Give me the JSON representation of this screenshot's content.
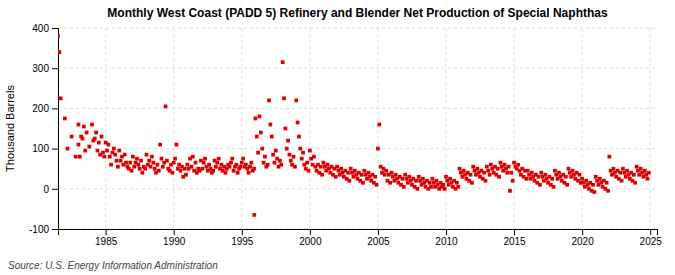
{
  "chart_data": {
    "type": "scatter",
    "title": "Monthly West Coast (PADD 5) Refinery and Blender Net Production of Special Naphthas",
    "ylabel": "Thousand Barrels",
    "annotations": [
      "Source: U.S. Energy Information Administration"
    ],
    "color": "#dd0000",
    "marker": "square",
    "grid": true,
    "xlim": [
      1981.5,
      2025.5
    ],
    "ylim": [
      -100,
      400
    ],
    "xticks": [
      1985,
      1990,
      1995,
      2000,
      2005,
      2010,
      2015,
      2020,
      2025
    ],
    "yticks": [
      -100,
      0,
      100,
      200,
      300,
      400
    ],
    "x": [
      1981.5,
      1981.6,
      1981.7,
      1982.0,
      1982.2,
      1982.5,
      1982.8,
      1983.0,
      1983.2,
      1983.4,
      1983.6,
      1983.8,
      1984.0,
      1984.2,
      1984.3,
      1984.5,
      1984.7,
      1984.9,
      1983.0,
      1983.1,
      1983.3,
      1983.5,
      1984.1,
      1984.4,
      1984.6,
      1984.8,
      1985.0,
      1985.1,
      1985.2,
      1985.3,
      1985.4,
      1985.5,
      1985.6,
      1985.7,
      1985.8,
      1985.9,
      1986.0,
      1986.1,
      1986.2,
      1986.3,
      1986.4,
      1986.5,
      1986.6,
      1986.7,
      1986.8,
      1986.9,
      1987.0,
      1987.1,
      1987.2,
      1987.3,
      1987.4,
      1987.5,
      1987.6,
      1987.7,
      1987.8,
      1987.9,
      1988.0,
      1988.1,
      1988.2,
      1988.3,
      1988.4,
      1988.5,
      1988.6,
      1988.7,
      1988.8,
      1988.9,
      1989.0,
      1989.1,
      1989.2,
      1989.3,
      1989.4,
      1989.5,
      1989.6,
      1989.7,
      1989.8,
      1989.9,
      1990.0,
      1990.1,
      1990.2,
      1990.3,
      1990.4,
      1990.5,
      1990.6,
      1990.7,
      1990.8,
      1990.9,
      1991.0,
      1991.1,
      1991.2,
      1991.3,
      1991.4,
      1991.5,
      1991.6,
      1991.7,
      1991.8,
      1991.9,
      1992.0,
      1992.1,
      1992.2,
      1992.3,
      1992.4,
      1992.5,
      1992.6,
      1992.7,
      1992.8,
      1992.9,
      1993.0,
      1993.1,
      1993.2,
      1993.3,
      1993.4,
      1993.5,
      1993.6,
      1993.7,
      1993.8,
      1993.9,
      1994.0,
      1994.1,
      1994.2,
      1994.3,
      1994.4,
      1994.5,
      1994.6,
      1994.7,
      1994.8,
      1994.9,
      1995.0,
      1995.1,
      1995.2,
      1995.3,
      1995.4,
      1995.5,
      1995.6,
      1995.7,
      1995.8,
      1995.9,
      1995.92,
      1996.0,
      1996.1,
      1996.2,
      1996.3,
      1996.4,
      1996.5,
      1996.6,
      1996.7,
      1996.8,
      1996.9,
      1997.0,
      1997.1,
      1997.2,
      1997.3,
      1997.4,
      1997.5,
      1997.6,
      1997.7,
      1997.8,
      1997.9,
      1998.0,
      1998.1,
      1998.2,
      1998.3,
      1998.4,
      1998.5,
      1998.6,
      1998.7,
      1998.8,
      1998.9,
      1999.0,
      1999.1,
      1999.2,
      1999.3,
      1999.4,
      1999.5,
      1999.6,
      1999.7,
      1999.8,
      1999.9,
      2000.0,
      2000.1,
      2000.2,
      2000.3,
      2000.4,
      2000.5,
      2000.6,
      2000.7,
      2000.8,
      2000.9,
      2001.0,
      2001.1,
      2001.2,
      2001.3,
      2001.4,
      2001.5,
      2001.6,
      2001.7,
      2001.8,
      2001.9,
      2002.0,
      2002.1,
      2002.2,
      2002.3,
      2002.4,
      2002.5,
      2002.6,
      2002.7,
      2002.8,
      2002.9,
      2003.0,
      2003.1,
      2003.2,
      2003.3,
      2003.4,
      2003.5,
      2003.6,
      2003.7,
      2003.8,
      2003.9,
      2004.0,
      2004.1,
      2004.2,
      2004.3,
      2004.4,
      2004.5,
      2004.6,
      2004.7,
      2004.8,
      2004.9,
      2005.0,
      2005.1,
      2005.2,
      2005.3,
      2005.4,
      2005.5,
      2005.6,
      2005.7,
      2005.8,
      2005.9,
      2006.0,
      2006.1,
      2006.2,
      2006.3,
      2006.4,
      2006.5,
      2006.6,
      2006.7,
      2006.8,
      2006.9,
      2007.0,
      2007.1,
      2007.2,
      2007.3,
      2007.4,
      2007.5,
      2007.6,
      2007.7,
      2007.8,
      2007.9,
      2008.0,
      2008.1,
      2008.2,
      2008.3,
      2008.4,
      2008.5,
      2008.6,
      2008.7,
      2008.8,
      2008.9,
      2009.0,
      2009.1,
      2009.2,
      2009.3,
      2009.4,
      2009.5,
      2009.6,
      2009.7,
      2009.8,
      2009.9,
      2010.0,
      2010.1,
      2010.2,
      2010.3,
      2010.4,
      2010.5,
      2010.6,
      2010.7,
      2010.8,
      2010.9,
      2011.0,
      2011.1,
      2011.2,
      2011.3,
      2011.4,
      2011.5,
      2011.6,
      2011.7,
      2011.8,
      2011.9,
      2012.0,
      2012.1,
      2012.2,
      2012.3,
      2012.4,
      2012.5,
      2012.6,
      2012.7,
      2012.8,
      2012.9,
      2013.0,
      2013.1,
      2013.2,
      2013.3,
      2013.4,
      2013.5,
      2013.6,
      2013.7,
      2013.8,
      2013.9,
      2014.0,
      2014.1,
      2014.2,
      2014.3,
      2014.4,
      2014.5,
      2014.6,
      2014.7,
      2014.8,
      2014.9,
      2015.0,
      2015.1,
      2015.2,
      2015.3,
      2015.4,
      2015.5,
      2015.6,
      2015.7,
      2015.8,
      2015.9,
      2016.0,
      2016.1,
      2016.2,
      2016.3,
      2016.4,
      2016.5,
      2016.6,
      2016.7,
      2016.8,
      2016.9,
      2017.0,
      2017.1,
      2017.2,
      2017.3,
      2017.4,
      2017.5,
      2017.6,
      2017.7,
      2017.8,
      2017.9,
      2018.0,
      2018.1,
      2018.2,
      2018.3,
      2018.4,
      2018.5,
      2018.6,
      2018.7,
      2018.8,
      2018.9,
      2019.0,
      2019.1,
      2019.2,
      2019.3,
      2019.4,
      2019.5,
      2019.6,
      2019.7,
      2019.8,
      2019.9,
      2020.0,
      2020.1,
      2020.2,
      2020.3,
      2020.4,
      2020.5,
      2020.6,
      2020.7,
      2020.8,
      2020.9,
      2021.0,
      2021.1,
      2021.2,
      2021.3,
      2021.4,
      2021.5,
      2021.6,
      2021.7,
      2021.8,
      2021.9,
      2022.0,
      2022.1,
      2022.2,
      2022.3,
      2022.4,
      2022.5,
      2022.6,
      2022.7,
      2022.8,
      2022.9,
      2023.0,
      2023.1,
      2023.2,
      2023.3,
      2023.4,
      2023.5,
      2023.6,
      2023.7,
      2023.8,
      2023.9,
      2024.0,
      2024.1,
      2024.2,
      2024.3,
      2024.4,
      2024.5,
      2024.6,
      2024.7,
      2024.8,
      2024.9
    ],
    "values": [
      380,
      340,
      225,
      175,
      100,
      130,
      80,
      160,
      130,
      155,
      140,
      105,
      160,
      125,
      140,
      115,
      130,
      80,
      110,
      80,
      125,
      95,
      120,
      95,
      85,
      90,
      115,
      95,
      110,
      80,
      60,
      90,
      100,
      85,
      70,
      55,
      95,
      70,
      80,
      60,
      85,
      65,
      55,
      50,
      65,
      45,
      80,
      55,
      65,
      75,
      60,
      50,
      70,
      40,
      55,
      50,
      85,
      60,
      70,
      55,
      80,
      65,
      50,
      40,
      60,
      45,
      110,
      75,
      55,
      65,
      205,
      70,
      50,
      45,
      60,
      40,
      65,
      75,
      110,
      50,
      60,
      45,
      55,
      30,
      50,
      35,
      60,
      50,
      75,
      55,
      80,
      45,
      65,
      40,
      50,
      45,
      70,
      50,
      65,
      75,
      55,
      45,
      60,
      50,
      40,
      45,
      70,
      55,
      65,
      75,
      50,
      60,
      45,
      55,
      40,
      50,
      60,
      55,
      65,
      75,
      45,
      55,
      60,
      40,
      50,
      55,
      65,
      75,
      55,
      60,
      50,
      40,
      55,
      65,
      45,
      50,
      -65,
      175,
      130,
      90,
      180,
      140,
      100,
      65,
      80,
      55,
      60,
      220,
      160,
      130,
      85,
      65,
      95,
      75,
      55,
      70,
      60,
      315,
      225,
      150,
      100,
      120,
      85,
      70,
      60,
      80,
      55,
      220,
      165,
      130,
      100,
      75,
      90,
      60,
      50,
      65,
      45,
      95,
      75,
      60,
      80,
      55,
      45,
      60,
      40,
      55,
      35,
      65,
      55,
      45,
      60,
      50,
      40,
      55,
      35,
      50,
      30,
      55,
      45,
      35,
      50,
      40,
      30,
      45,
      25,
      40,
      20,
      50,
      40,
      30,
      45,
      35,
      25,
      40,
      20,
      35,
      15,
      45,
      35,
      25,
      40,
      30,
      20,
      35,
      15,
      30,
      10,
      100,
      160,
      55,
      40,
      50,
      35,
      45,
      20,
      35,
      15,
      40,
      30,
      20,
      35,
      25,
      15,
      30,
      10,
      25,
      5,
      35,
      25,
      15,
      30,
      20,
      10,
      25,
      5,
      20,
      0,
      30,
      20,
      10,
      25,
      15,
      5,
      20,
      0,
      15,
      5,
      25,
      15,
      5,
      20,
      10,
      0,
      15,
      5,
      10,
      0,
      30,
      20,
      10,
      25,
      15,
      5,
      20,
      0,
      15,
      5,
      50,
      40,
      30,
      45,
      35,
      25,
      40,
      20,
      35,
      15,
      55,
      45,
      35,
      50,
      40,
      30,
      45,
      25,
      40,
      20,
      55,
      45,
      35,
      60,
      50,
      40,
      55,
      35,
      50,
      30,
      65,
      55,
      45,
      60,
      50,
      40,
      55,
      -5,
      40,
      20,
      65,
      55,
      50,
      60,
      45,
      35,
      50,
      30,
      45,
      25,
      45,
      35,
      25,
      40,
      30,
      20,
      35,
      15,
      30,
      10,
      40,
      30,
      20,
      35,
      25,
      15,
      30,
      10,
      25,
      5,
      45,
      35,
      25,
      40,
      30,
      20,
      35,
      15,
      30,
      10,
      50,
      40,
      30,
      45,
      35,
      25,
      40,
      20,
      35,
      15,
      25,
      15,
      5,
      20,
      10,
      0,
      15,
      -5,
      10,
      -8,
      30,
      20,
      10,
      25,
      15,
      5,
      20,
      0,
      15,
      -5,
      80,
      45,
      35,
      50,
      40,
      30,
      45,
      25,
      40,
      20,
      50,
      40,
      30,
      45,
      35,
      25,
      40,
      20,
      35,
      15,
      55,
      45,
      35,
      50,
      40,
      30,
      45,
      35,
      25,
      40
    ]
  }
}
